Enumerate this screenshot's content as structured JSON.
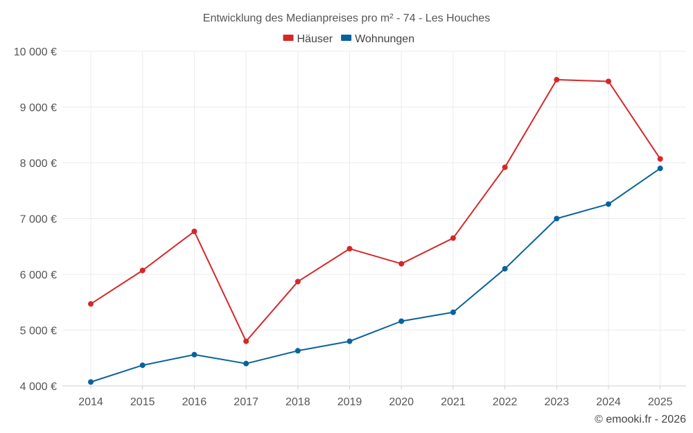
{
  "chart_data": {
    "type": "line",
    "title": "Entwicklung des Medianpreises pro m² - 74 - Les Houches",
    "categories": [
      "2014",
      "2015",
      "2016",
      "2017",
      "2018",
      "2019",
      "2020",
      "2021",
      "2022",
      "2023",
      "2024",
      "2025"
    ],
    "series": [
      {
        "name": "Häuser",
        "color": "#d62728",
        "values": [
          5470,
          6070,
          6770,
          4800,
          5870,
          6460,
          6190,
          6650,
          7920,
          9490,
          9460,
          8070
        ]
      },
      {
        "name": "Wohnungen",
        "color": "#08629e",
        "values": [
          4070,
          4370,
          4560,
          4400,
          4630,
          4800,
          5160,
          5320,
          6100,
          7000,
          7260,
          7900
        ]
      }
    ],
    "ylim": [
      4000,
      10000
    ],
    "yticks": [
      4000,
      5000,
      6000,
      7000,
      8000,
      9000,
      10000
    ],
    "ytick_labels": [
      "4 000 €",
      "5 000 €",
      "6 000 €",
      "7 000 €",
      "8 000 €",
      "9 000 €",
      "10 000 €"
    ],
    "xlabel": "",
    "ylabel": "",
    "grid": true,
    "legend_position": "top-center"
  },
  "credit": "© emooki.fr - 2026"
}
